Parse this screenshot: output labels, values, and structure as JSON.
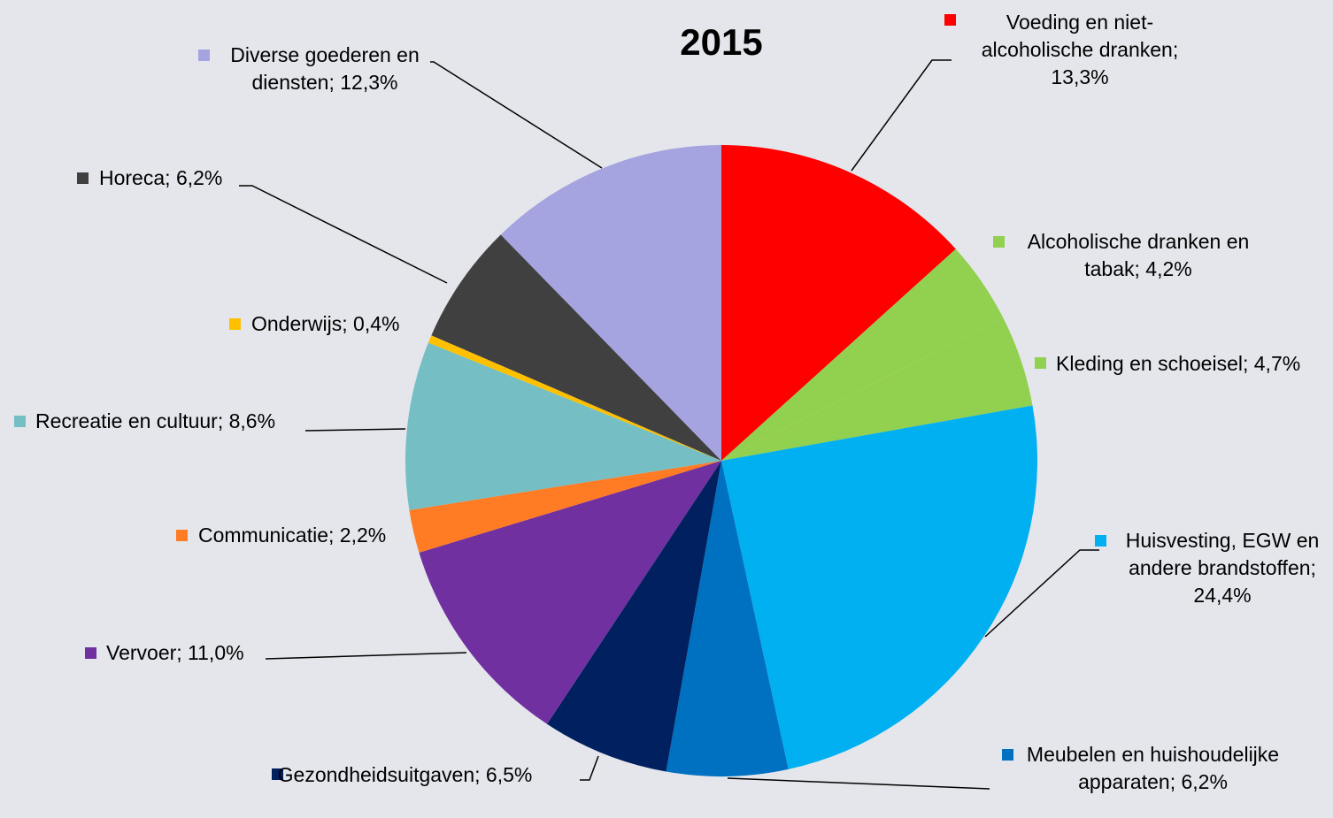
{
  "chart_data": {
    "type": "pie",
    "title": "2015",
    "categories": [
      "Voeding en niet-alcoholische dranken",
      "Alcoholische dranken en tabak",
      "Kleding en schoeisel",
      "Huisvesting, EGW en andere brandstoffen",
      "Meubelen en huishoudelijke apparaten",
      "Gezondheidsuitgaven",
      "Vervoer",
      "Communicatie",
      "Recreatie en cultuur",
      "Onderwijs",
      "Horeca",
      "Diverse goederen en diensten"
    ],
    "values": [
      13.3,
      4.2,
      4.7,
      24.4,
      6.2,
      6.5,
      11.0,
      2.2,
      8.6,
      0.4,
      6.2,
      12.3
    ],
    "value_labels": [
      "13,3%",
      "4,2%",
      "4,7%",
      "24,4%",
      "6,2%",
      "6,5%",
      "11,0%",
      "2,2%",
      "8,6%",
      "0,4%",
      "6,2%",
      "12,3%"
    ],
    "label_separator": "; ",
    "colors": [
      "#ff0000",
      "#92d050",
      "#92d050",
      "#00b0f0",
      "#0070c0",
      "#002060",
      "#7030a0",
      "#ff7b24",
      "#75bfc4",
      "#ffc000",
      "#404040",
      "#a5a3e0"
    ]
  }
}
